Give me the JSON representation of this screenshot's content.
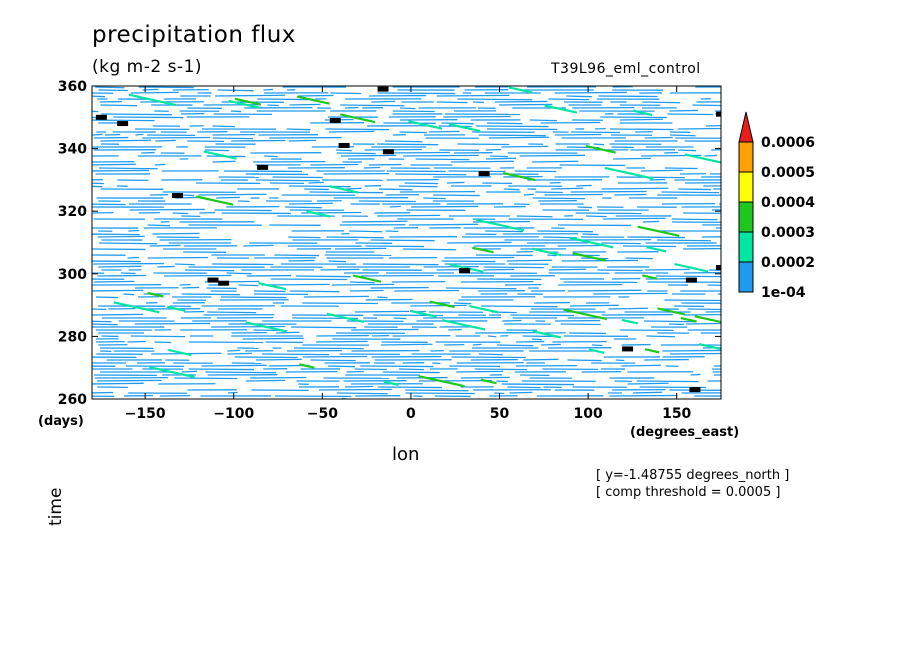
{
  "chart_data": {
    "type": "heatmap",
    "title": "precipitation flux",
    "units": "(kg m-2 s-1)",
    "run_name": "T39L96_eml_control",
    "xlabel": "lon",
    "x_unit": "(degrees_east)",
    "ylabel": "time",
    "y_unit": "(days)",
    "xlim": [
      -180,
      175
    ],
    "ylim": [
      260,
      360
    ],
    "x_ticks": [
      -150,
      -100,
      -50,
      0,
      50,
      100,
      150
    ],
    "y_ticks": [
      260,
      280,
      300,
      320,
      340,
      360
    ],
    "colorbar": {
      "levels": [
        "1e-04",
        "0.0002",
        "0.0003",
        "0.0004",
        "0.0005",
        "0.0006"
      ],
      "colors": [
        "#1e9bf0",
        "#00e6a0",
        "#1ec81e",
        "#ffff00",
        "#ffa000",
        "#e61e1e"
      ],
      "extend": "max"
    },
    "notes": [
      "[ y=-1.48755 degrees_north ]",
      "[ comp threshold = 0.0005 ]"
    ],
    "threshold_markers": [
      {
        "lon": -175,
        "time": 350
      },
      {
        "lon": -163,
        "time": 348
      },
      {
        "lon": -132,
        "time": 325
      },
      {
        "lon": -112,
        "time": 298
      },
      {
        "lon": -106,
        "time": 297
      },
      {
        "lon": -84,
        "time": 334
      },
      {
        "lon": -43,
        "time": 349
      },
      {
        "lon": -38,
        "time": 341
      },
      {
        "lon": -16,
        "time": 359
      },
      {
        "lon": -13,
        "time": 339
      },
      {
        "lon": 30,
        "time": 301
      },
      {
        "lon": 41,
        "time": 332
      },
      {
        "lon": 122,
        "time": 276
      },
      {
        "lon": 158,
        "time": 298
      },
      {
        "lon": 160,
        "time": 263
      },
      {
        "lon": 175,
        "time": 302
      },
      {
        "lon": 175,
        "time": 351
      }
    ],
    "grid": false
  }
}
